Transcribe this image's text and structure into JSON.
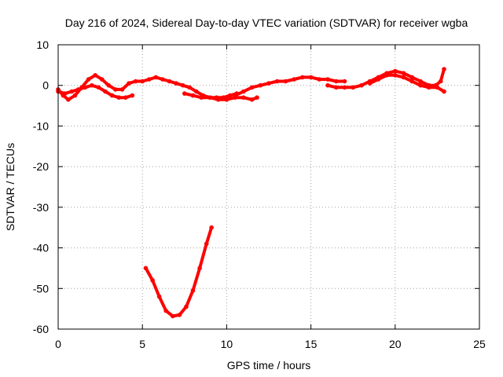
{
  "chart_data": {
    "type": "scatter",
    "title": "Day 216 of 2024, Sidereal Day-to-day VTEC variation (SDTVAR) for receiver wgba",
    "xlabel": "GPS time / hours",
    "ylabel": "SDTVAR / TECUs",
    "xlim": [
      0,
      25
    ],
    "ylim": [
      -60,
      10
    ],
    "xticks": [
      0,
      5,
      10,
      15,
      20,
      25
    ],
    "yticks": [
      10,
      0,
      -10,
      -20,
      -30,
      -40,
      -50,
      -60
    ],
    "grid": true,
    "series_color": "#ff0000",
    "series": [
      {
        "name": "track-1",
        "x": [
          0.0,
          0.3,
          0.6,
          1.0,
          1.4,
          1.8,
          2.2,
          2.6,
          3.0,
          3.4,
          3.8,
          4.2,
          4.6,
          5.0,
          5.4,
          5.8,
          6.2,
          6.6,
          7.0,
          7.4,
          7.8,
          8.2,
          8.6,
          9.0,
          9.4,
          9.8,
          10.2,
          10.6
        ],
        "y": [
          -1.0,
          -2.5,
          -3.5,
          -2.5,
          -0.5,
          1.5,
          2.5,
          1.5,
          0.0,
          -1.0,
          -1.0,
          0.5,
          1.0,
          1.0,
          1.5,
          2.0,
          1.5,
          1.0,
          0.5,
          0.0,
          -0.5,
          -1.5,
          -2.5,
          -3.0,
          -3.0,
          -3.0,
          -2.5,
          -2.0
        ]
      },
      {
        "name": "track-2",
        "x": [
          0.0,
          0.4,
          0.8,
          1.2,
          1.6,
          2.0,
          2.4,
          2.8,
          3.2,
          3.6,
          4.0,
          4.4
        ],
        "y": [
          -1.5,
          -2.0,
          -1.5,
          -1.0,
          -0.5,
          0.0,
          -0.5,
          -1.5,
          -2.5,
          -3.0,
          -3.0,
          -2.5
        ]
      },
      {
        "name": "track-3",
        "x": [
          5.2,
          5.6,
          6.0,
          6.4,
          6.8,
          7.2,
          7.6,
          8.0,
          8.4,
          8.8,
          9.1
        ],
        "y": [
          -45.0,
          -48.0,
          -52.0,
          -55.5,
          -56.8,
          -56.5,
          -54.5,
          -50.5,
          -45.0,
          -39.0,
          -35.0
        ]
      },
      {
        "name": "track-4",
        "x": [
          7.5,
          8.0,
          8.5,
          9.0,
          9.5,
          10.0,
          10.5,
          11.0,
          11.5,
          11.8
        ],
        "y": [
          -2.0,
          -2.5,
          -3.0,
          -3.0,
          -3.5,
          -3.5,
          -3.0,
          -3.0,
          -3.5,
          -3.0
        ]
      },
      {
        "name": "track-5",
        "x": [
          10.5,
          11.0,
          11.5,
          12.0,
          12.5,
          13.0,
          13.5,
          14.0,
          14.5,
          15.0,
          15.5,
          16.0,
          16.5,
          17.0
        ],
        "y": [
          -2.5,
          -1.5,
          -0.5,
          0.0,
          0.5,
          1.0,
          1.0,
          1.5,
          2.0,
          2.0,
          1.5,
          1.5,
          1.0,
          1.0
        ]
      },
      {
        "name": "track-6",
        "x": [
          16.0,
          16.5,
          17.0,
          17.5,
          18.0,
          18.5,
          19.0,
          19.5,
          20.0,
          20.5,
          21.0,
          21.5,
          22.0,
          22.4,
          22.7,
          22.9
        ],
        "y": [
          0.0,
          -0.5,
          -0.5,
          -0.5,
          0.0,
          1.0,
          2.0,
          3.0,
          3.5,
          3.0,
          2.0,
          1.0,
          0.0,
          0.0,
          1.0,
          4.0
        ]
      },
      {
        "name": "track-7",
        "x": [
          18.5,
          19.0,
          19.5,
          20.0,
          20.5,
          21.0,
          21.5,
          22.0,
          22.5,
          22.9
        ],
        "y": [
          0.5,
          1.5,
          2.5,
          2.5,
          2.0,
          1.0,
          0.0,
          -0.5,
          -0.5,
          -1.5
        ]
      }
    ]
  }
}
